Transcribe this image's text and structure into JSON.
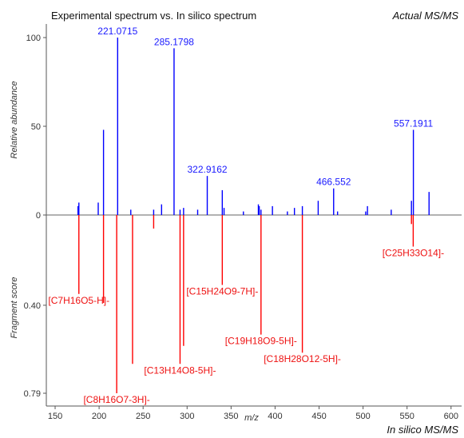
{
  "chart_data": {
    "type": "bar",
    "title": "Experimental spectrum vs. In silico spectrum",
    "top_right_label": "Actual MS/MS",
    "bottom_right_label": "In silico MS/MS",
    "xlabel": "m/z",
    "ylabel_top": "Relative abundance",
    "ylabel_bottom": "Fragment score",
    "xlim": [
      140,
      612
    ],
    "ylim_top": [
      0,
      105
    ],
    "ylim_bottom": [
      0,
      0.82
    ],
    "x_ticks": [
      150,
      200,
      250,
      300,
      350,
      400,
      450,
      500,
      550,
      600
    ],
    "y_ticks_top": [
      0,
      50,
      100
    ],
    "y_ticks_bottom": [
      0.4,
      0.79
    ],
    "colors": {
      "experimental": "#0000ff",
      "in_silico": "#ff0000",
      "label_experimental": "#1a1aff",
      "label_in_silico": "#ee1111"
    },
    "experimental": [
      {
        "x": 176,
        "y": 5
      },
      {
        "x": 177,
        "y": 7
      },
      {
        "x": 199,
        "y": 7
      },
      {
        "x": 205,
        "y": 48
      },
      {
        "x": 221.0715,
        "y": 100,
        "label": "221.0715"
      },
      {
        "x": 236,
        "y": 3
      },
      {
        "x": 262,
        "y": 3
      },
      {
        "x": 271,
        "y": 6
      },
      {
        "x": 285.1798,
        "y": 94,
        "label": "285.1798"
      },
      {
        "x": 292,
        "y": 3
      },
      {
        "x": 296,
        "y": 4
      },
      {
        "x": 312,
        "y": 3
      },
      {
        "x": 322.9162,
        "y": 22,
        "label": "322.9162"
      },
      {
        "x": 340,
        "y": 14
      },
      {
        "x": 342,
        "y": 4
      },
      {
        "x": 364,
        "y": 2
      },
      {
        "x": 381,
        "y": 6
      },
      {
        "x": 382,
        "y": 5
      },
      {
        "x": 384,
        "y": 3
      },
      {
        "x": 397,
        "y": 5
      },
      {
        "x": 414,
        "y": 2
      },
      {
        "x": 422,
        "y": 4
      },
      {
        "x": 431,
        "y": 5
      },
      {
        "x": 449,
        "y": 8
      },
      {
        "x": 466.552,
        "y": 15,
        "label": "466.552"
      },
      {
        "x": 471,
        "y": 2
      },
      {
        "x": 503,
        "y": 2
      },
      {
        "x": 505,
        "y": 5
      },
      {
        "x": 532,
        "y": 3
      },
      {
        "x": 555,
        "y": 8
      },
      {
        "x": 557.1911,
        "y": 48,
        "label": "557.1911"
      },
      {
        "x": 575,
        "y": 13
      }
    ],
    "in_silico": [
      {
        "x": 177,
        "score": 0.35,
        "label": "[C7H16O5-H]-"
      },
      {
        "x": 205,
        "score": 0.39
      },
      {
        "x": 220,
        "score": 0.79,
        "label": "[C8H16O7-3H]-"
      },
      {
        "x": 238,
        "score": 0.66
      },
      {
        "x": 262,
        "score": 0.06
      },
      {
        "x": 292,
        "score": 0.66,
        "label": "[C13H14O8-5H]-"
      },
      {
        "x": 296,
        "score": 0.58
      },
      {
        "x": 340,
        "score": 0.31,
        "label": "[C15H24O9-7H]-"
      },
      {
        "x": 384,
        "score": 0.53,
        "label": "[C19H18O9-5H]-"
      },
      {
        "x": 431,
        "score": 0.61,
        "label": "[C18H28O12-5H]-"
      },
      {
        "x": 555,
        "score": 0.04
      },
      {
        "x": 557,
        "score": 0.14,
        "label": "[C25H33O14]-"
      }
    ]
  }
}
